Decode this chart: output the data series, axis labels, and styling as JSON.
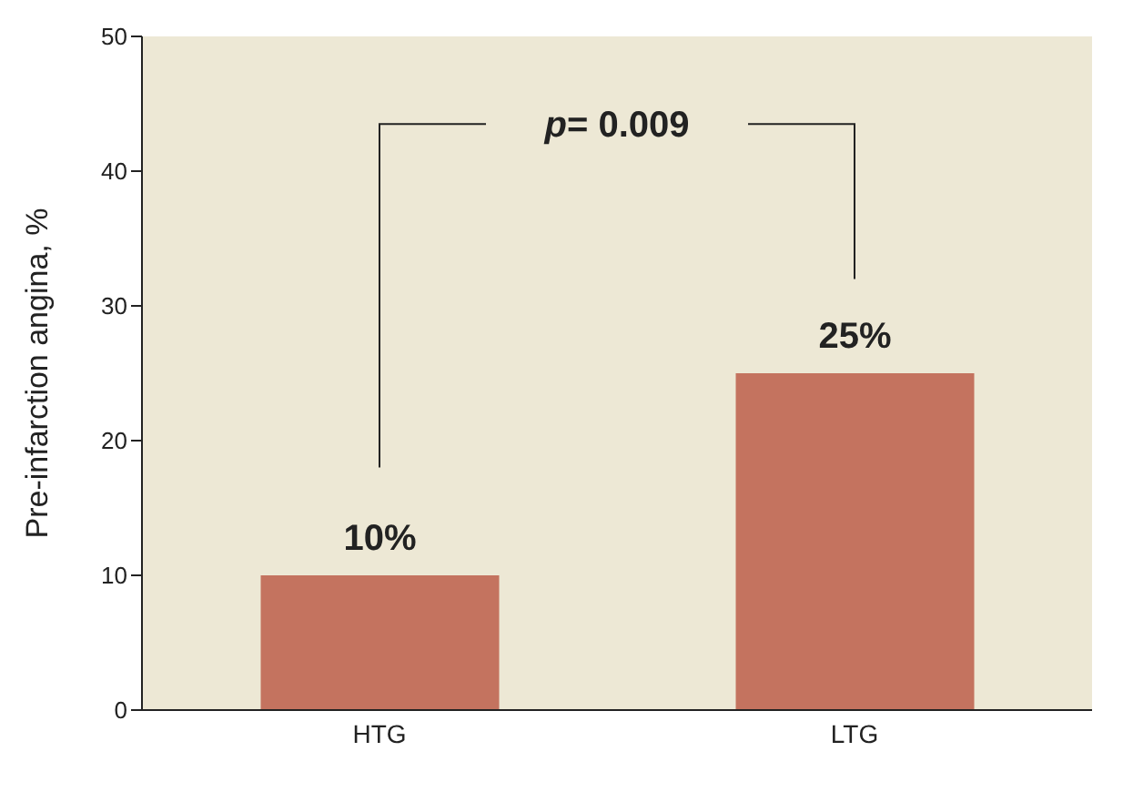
{
  "chart_data": {
    "type": "bar",
    "ylabel": "Pre-infarction angina, %",
    "categories": [
      "HTG",
      "LTG"
    ],
    "values": [
      10,
      25
    ],
    "value_labels": [
      "10%",
      "25%"
    ],
    "color": "#c4735f",
    "ylim": [
      0,
      50
    ],
    "yticks": [
      0,
      10,
      20,
      30,
      40,
      50
    ],
    "grid": false,
    "annotations": [
      "p= 0.009"
    ]
  }
}
